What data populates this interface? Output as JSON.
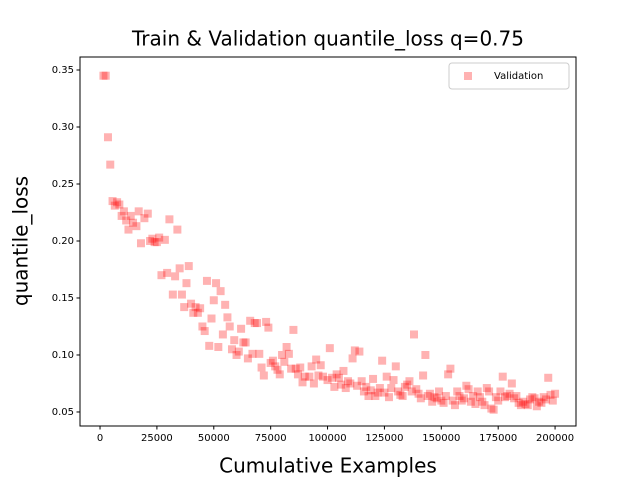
{
  "chart_data": {
    "type": "scatter",
    "title": "Train & Validation quantile_loss q=0.75",
    "xlabel": "Cumulative Examples",
    "ylabel": "quantile_loss",
    "x": [
      1500,
      2500,
      3500,
      4500,
      5500,
      6500,
      7500,
      8500,
      9500,
      10500,
      11500,
      12500,
      13500,
      14500,
      16000,
      17000,
      18000,
      19500,
      21000,
      22000,
      23000,
      24000,
      25000,
      26000,
      27000,
      28500,
      29500,
      30500,
      32000,
      33000,
      34000,
      35000,
      36000,
      37000,
      38000,
      39000,
      40000,
      41000,
      42000,
      43000,
      44000,
      45000,
      46000,
      47000,
      48000,
      49000,
      50000,
      51000,
      52000,
      53000,
      54000,
      55000,
      56000,
      57000,
      58000,
      59000,
      60000,
      61000,
      62000,
      63000,
      64000,
      65000,
      66000,
      67000,
      68000,
      69000,
      70000,
      71000,
      72000,
      73000,
      74000,
      75000,
      76000,
      77000,
      78000,
      79000,
      80000,
      81000,
      82000,
      83000,
      84000,
      85000,
      86000,
      87000,
      88000,
      89000,
      90000,
      92000,
      93000,
      94000,
      95000,
      96000,
      97000,
      98000,
      100000,
      101000,
      102000,
      103000,
      104000,
      105000,
      106000,
      107000,
      108000,
      109000,
      110000,
      111000,
      112000,
      113000,
      114000,
      115000,
      116000,
      117000,
      118000,
      119000,
      120000,
      121000,
      122000,
      123000,
      124000,
      125000,
      126000,
      127000,
      128000,
      129000,
      130000,
      131000,
      132000,
      133000,
      134000,
      135000,
      136000,
      137000,
      138000,
      139000,
      140000,
      141000,
      142000,
      143000,
      144000,
      145000,
      146000,
      147000,
      148000,
      149000,
      150000,
      151000,
      152000,
      153000,
      154000,
      155000,
      156000,
      157000,
      158000,
      159000,
      160000,
      161000,
      162000,
      163000,
      164000,
      165000,
      166000,
      167000,
      168000,
      169000,
      170000,
      171000,
      172000,
      173000,
      174000,
      175000,
      176000,
      177000,
      178000,
      179000,
      180000,
      181000,
      182000,
      183000,
      184000,
      185000,
      186000,
      187000,
      188000,
      189000,
      190000,
      191000,
      192000,
      193000,
      194000,
      195000,
      196000,
      197000,
      198000,
      199000,
      200000
    ],
    "series": [
      {
        "name": "Validation",
        "color": "rgba(255,0,0,0.3)",
        "values": [
          0.345,
          0.345,
          0.291,
          0.267,
          0.235,
          0.231,
          0.234,
          0.232,
          0.222,
          0.226,
          0.218,
          0.21,
          0.222,
          0.216,
          0.213,
          0.226,
          0.198,
          0.22,
          0.224,
          0.2,
          0.202,
          0.199,
          0.199,
          0.203,
          0.17,
          0.201,
          0.172,
          0.219,
          0.153,
          0.169,
          0.21,
          0.176,
          0.153,
          0.142,
          0.163,
          0.178,
          0.145,
          0.137,
          0.142,
          0.137,
          0.141,
          0.125,
          0.121,
          0.165,
          0.108,
          0.132,
          0.148,
          0.163,
          0.107,
          0.156,
          0.118,
          0.144,
          0.133,
          0.125,
          0.105,
          0.113,
          0.1,
          0.103,
          0.123,
          0.111,
          0.111,
          0.097,
          0.13,
          0.101,
          0.128,
          0.128,
          0.101,
          0.089,
          0.082,
          0.129,
          0.124,
          0.093,
          0.095,
          0.09,
          0.087,
          0.083,
          0.1,
          0.094,
          0.107,
          0.101,
          0.088,
          0.122,
          0.088,
          0.083,
          0.089,
          0.076,
          0.081,
          0.081,
          0.09,
          0.075,
          0.096,
          0.082,
          0.091,
          0.081,
          0.078,
          0.106,
          0.08,
          0.072,
          0.083,
          0.08,
          0.074,
          0.086,
          0.071,
          0.077,
          0.075,
          0.097,
          0.104,
          0.073,
          0.103,
          0.077,
          0.068,
          0.072,
          0.064,
          0.069,
          0.079,
          0.064,
          0.067,
          0.071,
          0.095,
          0.067,
          0.081,
          0.063,
          0.071,
          0.078,
          0.09,
          0.068,
          0.065,
          0.064,
          0.072,
          0.074,
          0.077,
          0.068,
          0.118,
          0.07,
          0.066,
          0.062,
          0.082,
          0.1,
          0.064,
          0.066,
          0.059,
          0.063,
          0.062,
          0.068,
          0.06,
          0.058,
          0.064,
          0.083,
          0.088,
          0.06,
          0.056,
          0.068,
          0.064,
          0.06,
          0.062,
          0.073,
          0.07,
          0.059,
          0.064,
          0.057,
          0.068,
          0.063,
          0.059,
          0.056,
          0.071,
          0.068,
          0.053,
          0.052,
          0.063,
          0.06,
          0.068,
          0.081,
          0.063,
          0.064,
          0.066,
          0.075,
          0.062,
          0.064,
          0.058,
          0.056,
          0.059,
          0.057,
          0.056,
          0.061,
          0.063,
          0.062,
          0.055,
          0.059,
          0.058,
          0.063,
          0.061,
          0.08,
          0.065,
          0.06,
          0.066
        ]
      }
    ],
    "xlim": [
      -8800,
      209200
    ],
    "ylim": [
      0.0377,
      0.3614
    ],
    "xticks": [
      0,
      25000,
      50000,
      75000,
      100000,
      125000,
      150000,
      175000,
      200000
    ],
    "yticks": [
      0.05,
      {
        "value": 0.1,
        "label": "0.10"
      },
      0.15,
      {
        "value": 0.2,
        "label": "0.20"
      },
      0.25,
      {
        "value": 0.3,
        "label": "0.30"
      },
      0.35
    ],
    "legend": "upper right"
  }
}
